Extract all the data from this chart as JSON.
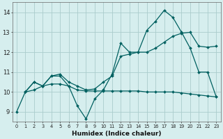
{
  "xlabel": "Humidex (Indice chaleur)",
  "bg_color": "#d6eeee",
  "line_color": "#006060",
  "grid_color": "#aacccc",
  "xlim": [
    -0.5,
    23.5
  ],
  "ylim": [
    8.5,
    14.5
  ],
  "xticks": [
    0,
    1,
    2,
    3,
    4,
    5,
    6,
    7,
    8,
    9,
    10,
    11,
    12,
    13,
    14,
    15,
    16,
    17,
    18,
    19,
    20,
    21,
    22,
    23
  ],
  "yticks": [
    9,
    10,
    11,
    12,
    13,
    14
  ],
  "line1_x": [
    0,
    1,
    2,
    3,
    4,
    5,
    6,
    7,
    8,
    9,
    10,
    11,
    12,
    13,
    14,
    15,
    16,
    17,
    18,
    19,
    20,
    21,
    22,
    23
  ],
  "line1_y": [
    9.0,
    10.0,
    10.5,
    10.3,
    10.8,
    10.8,
    10.3,
    9.3,
    8.65,
    9.65,
    10.1,
    10.9,
    12.45,
    12.0,
    12.0,
    13.1,
    13.55,
    14.1,
    13.75,
    13.0,
    12.2,
    11.0,
    11.0,
    9.75
  ],
  "line2_x": [
    1,
    2,
    3,
    4,
    5,
    6,
    7,
    8,
    9,
    10,
    11,
    12,
    13,
    14,
    15,
    16,
    17,
    18,
    19,
    20,
    21,
    22,
    23
  ],
  "line2_y": [
    10.0,
    10.5,
    10.3,
    10.8,
    10.9,
    10.5,
    10.3,
    10.1,
    10.15,
    10.5,
    10.8,
    11.8,
    11.9,
    12.0,
    12.0,
    12.2,
    12.5,
    12.8,
    12.95,
    13.0,
    12.3,
    12.25,
    12.3
  ],
  "line3_x": [
    1,
    2,
    3,
    4,
    5,
    6,
    7,
    8,
    9,
    10,
    11,
    12,
    13,
    14,
    15,
    16,
    17,
    18,
    19,
    20,
    21,
    22,
    23
  ],
  "line3_y": [
    10.0,
    10.1,
    10.3,
    10.4,
    10.4,
    10.3,
    10.1,
    10.05,
    10.05,
    10.05,
    10.05,
    10.05,
    10.05,
    10.05,
    10.0,
    10.0,
    10.0,
    10.0,
    9.95,
    9.9,
    9.85,
    9.8,
    9.75
  ]
}
